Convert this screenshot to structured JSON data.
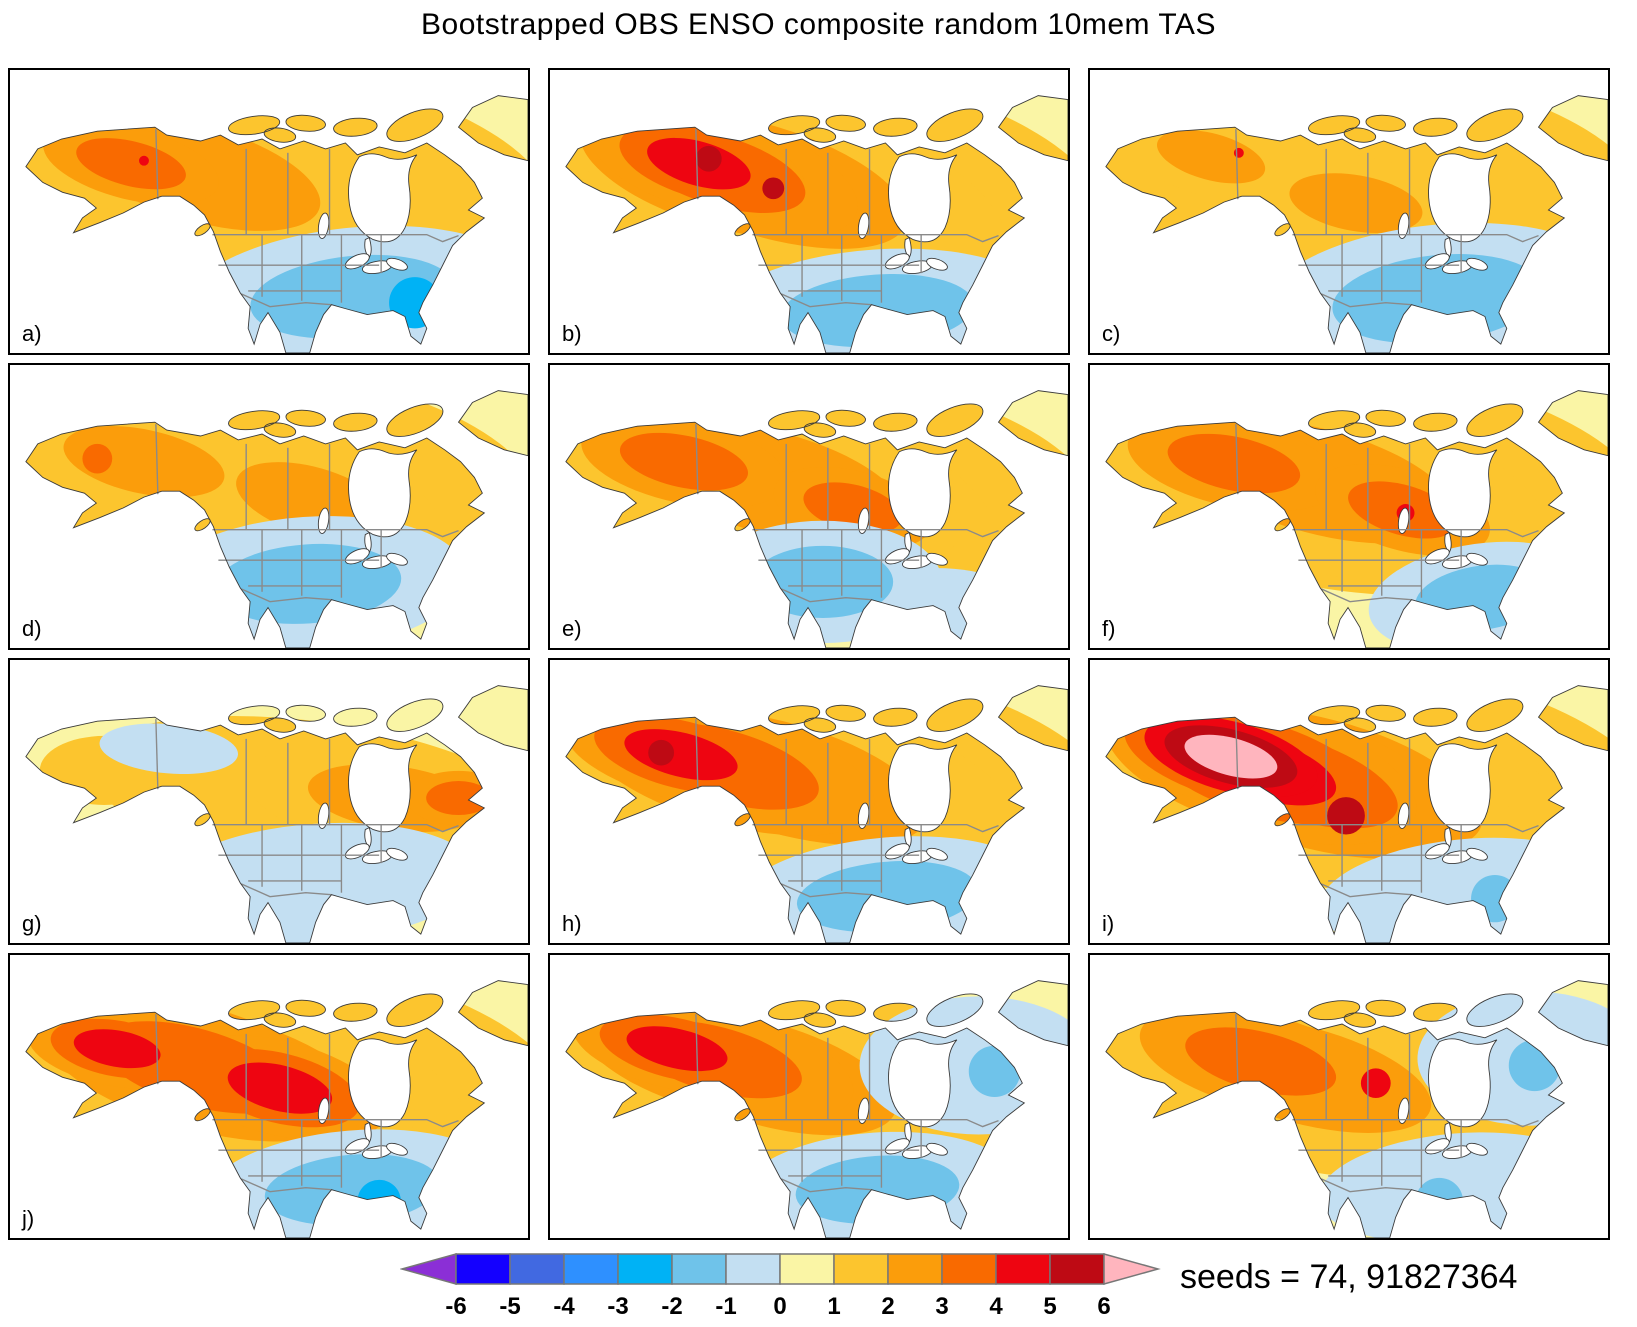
{
  "title": "Bootstrapped OBS ENSO composite random 10mem TAS",
  "seeds_label": "seeds = 74, 91827364",
  "colorbar": {
    "tick_labels": [
      "-6",
      "-5",
      "-4",
      "-3",
      "-2",
      "-1",
      "0",
      "1",
      "2",
      "3",
      "4",
      "5",
      "6"
    ],
    "segment_colors": [
      "#1400FF",
      "#4169E1",
      "#2E90FF",
      "#00B2F5",
      "#6FC3EA",
      "#C3DFF2",
      "#FAF5A5",
      "#FCC52E",
      "#FB9D0B",
      "#F96A00",
      "#EE0511",
      "#BE0A14"
    ],
    "under_arrow_color": "#8B2FD6",
    "over_arrow_color": "#FFB5BE",
    "outline_color": "#777777"
  },
  "map_style": {
    "ocean": "#FFFFFF",
    "land_base": "#FAF5A5",
    "coast": "#3A3A3A",
    "internal_borders": "#8A8A8A",
    "lake_fill": "#FFFFFF"
  },
  "chart_data": {
    "type": "filled-contour-map-grid",
    "region": "North America",
    "variable": "TAS anomaly composite (bootstrapped ENSO, random 10 members)",
    "value_range": [
      -6,
      6
    ],
    "rows": 4,
    "cols": 3,
    "warm_palette": {
      "1": "#FCC52E",
      "2": "#FB9D0B",
      "3": "#F96A00",
      "4": "#EE0511",
      "5": "#BE0A14",
      "6": "#FFB5BE"
    },
    "cool_palette": {
      "-1": "#C3DFF2",
      "-2": "#6FC3EA",
      "-3": "#00B2F5",
      "-4": "#2E90FF",
      "-5": "#4169E1",
      "-6": "#1400FF"
    },
    "panels": [
      {
        "label": "a)",
        "warm": [
          [
            255,
            108,
            295,
            115,
            8,
            1
          ],
          [
            190,
            105,
            215,
            82,
            16,
            2
          ],
          [
            122,
            95,
            125,
            50,
            14,
            3
          ]
        ],
        "cool": [
          [
            345,
            230,
            175,
            70,
            -6,
            -2
          ]
        ],
        "spots": [
          [
            135,
            92,
            5,
            4
          ],
          [
            408,
            236,
            26,
            -3
          ]
        ]
      },
      {
        "label": "b)",
        "warm": [
          [
            260,
            112,
            300,
            118,
            8,
            1
          ],
          [
            215,
            112,
            255,
            95,
            17,
            2
          ],
          [
            170,
            102,
            200,
            78,
            17,
            3
          ],
          [
            150,
            95,
            140,
            58,
            16,
            4
          ]
        ],
        "cool": [
          [
            330,
            244,
            165,
            62,
            -4,
            -2
          ]
        ],
        "spots": [
          [
            160,
            90,
            13,
            5
          ],
          [
            225,
            120,
            11,
            5
          ]
        ]
      },
      {
        "label": "c)",
        "warm": [
          [
            270,
            110,
            290,
            115,
            6,
            1
          ],
          [
            122,
            88,
            95,
            40,
            15,
            2
          ],
          [
            268,
            135,
            115,
            48,
            10,
            2
          ]
        ],
        "cool": [
          [
            350,
            232,
            180,
            75,
            -6,
            -2
          ]
        ],
        "spots": [
          [
            150,
            84,
            5,
            4
          ]
        ]
      },
      {
        "label": "d)",
        "warm": [
          [
            250,
            112,
            285,
            112,
            7,
            1
          ],
          [
            135,
            98,
            140,
            55,
            12,
            2
          ],
          [
            305,
            138,
            135,
            58,
            16,
            2
          ]
        ],
        "cool": [
          [
            300,
            222,
            160,
            68,
            -4,
            -2
          ]
        ],
        "spots": [
          [
            88,
            95,
            15,
            3
          ]
        ]
      },
      {
        "label": "e)",
        "warm": [
          [
            262,
            115,
            290,
            112,
            7,
            1
          ],
          [
            225,
            120,
            230,
            88,
            15,
            2
          ],
          [
            135,
            98,
            145,
            58,
            12,
            3
          ],
          [
            305,
            145,
            112,
            52,
            14,
            3
          ]
        ],
        "cool": [
          [
            275,
            220,
            120,
            62,
            0,
            -2
          ],
          [
            390,
            244,
            90,
            38,
            0,
            -1
          ]
        ],
        "spots": []
      },
      {
        "label": "f)",
        "warm": [
          [
            268,
            115,
            295,
            115,
            7,
            1
          ],
          [
            230,
            118,
            240,
            90,
            15,
            2
          ],
          [
            145,
            100,
            150,
            60,
            12,
            3
          ],
          [
            315,
            147,
            125,
            56,
            16,
            3
          ]
        ],
        "cool": [
          [
            395,
            236,
            115,
            55,
            -8,
            -2
          ]
        ],
        "spots": [
          [
            318,
            150,
            9,
            4
          ]
        ]
      },
      {
        "label": "g)",
        "warm": [
          [
            310,
            138,
            235,
            75,
            8,
            1
          ],
          [
            95,
            112,
            65,
            35,
            0,
            1
          ],
          [
            388,
            140,
            150,
            55,
            8,
            2
          ],
          [
            452,
            140,
            72,
            38,
            0,
            3
          ]
        ],
        "cool": [
          [
            160,
            90,
            70,
            25,
            5,
            -1
          ],
          [
            310,
            226,
            160,
            60,
            -4,
            -1
          ]
        ],
        "spots": []
      },
      {
        "label": "h)",
        "warm": [
          [
            272,
            115,
            300,
            116,
            8,
            1
          ],
          [
            235,
            120,
            255,
            95,
            16,
            2
          ],
          [
            178,
            108,
            212,
            80,
            16,
            3
          ],
          [
            132,
            96,
            152,
            58,
            14,
            4
          ]
        ],
        "cool": [
          [
            340,
            240,
            155,
            60,
            -5,
            -2
          ]
        ],
        "spots": [
          [
            112,
            94,
            13,
            5
          ]
        ]
      },
      {
        "label": "i)",
        "warm": [
          [
            278,
            118,
            300,
            118,
            8,
            1
          ],
          [
            245,
            122,
            265,
            100,
            17,
            2
          ],
          [
            208,
            120,
            235,
            90,
            18,
            3
          ],
          [
            172,
            110,
            205,
            80,
            17,
            4
          ],
          [
            142,
            98,
            152,
            60,
            15,
            6
          ]
        ],
        "cool": [
          [
            375,
            238,
            145,
            56,
            -6,
            -1
          ]
        ],
        "spots": [
          [
            258,
            158,
            19,
            5
          ],
          [
            408,
            242,
            24,
            -2
          ]
        ]
      },
      {
        "label": "j)",
        "warm": [
          [
            262,
            115,
            300,
            116,
            8,
            1
          ],
          [
            218,
            118,
            255,
            93,
            16,
            2
          ],
          [
            188,
            114,
            225,
            86,
            16,
            3
          ],
          [
            108,
            95,
            115,
            48,
            10,
            4
          ],
          [
            272,
            135,
            140,
            60,
            14,
            4
          ]
        ],
        "cool": [
          [
            345,
            238,
            150,
            60,
            -5,
            -2
          ]
        ],
        "spots": [
          [
            372,
            250,
            22,
            -3
          ]
        ]
      },
      {
        "label": "",
        "warm": [
          [
            252,
            118,
            280,
            106,
            8,
            1
          ],
          [
            215,
            120,
            235,
            88,
            16,
            2
          ],
          [
            168,
            106,
            195,
            73,
            15,
            3
          ],
          [
            128,
            95,
            135,
            52,
            13,
            4
          ]
        ],
        "cool": [
          [
            432,
            112,
            120,
            70,
            0,
            -1
          ],
          [
            330,
            238,
            140,
            58,
            -4,
            -2
          ]
        ],
        "spots": [
          [
            448,
            118,
            26,
            -2
          ]
        ]
      },
      {
        "label": "",
        "warm": [
          [
            250,
            120,
            275,
            103,
            8,
            1
          ],
          [
            215,
            122,
            225,
            83,
            15,
            2
          ],
          [
            172,
            108,
            172,
            66,
            14,
            3
          ]
        ],
        "cool": [
          [
            445,
            105,
            115,
            68,
            0,
            -1
          ],
          [
            370,
            236,
            140,
            55,
            -5,
            -1
          ]
        ],
        "spots": [
          [
            288,
            130,
            15,
            4
          ],
          [
            352,
            250,
            24,
            -2
          ],
          [
            448,
            112,
            26,
            -2
          ]
        ]
      }
    ]
  }
}
